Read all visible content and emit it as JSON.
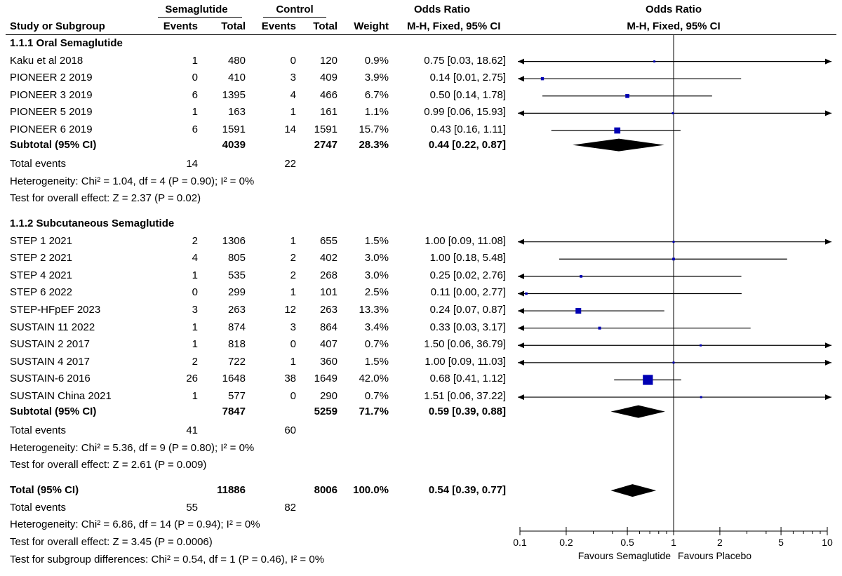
{
  "header": {
    "group1": "Semaglutide",
    "group2": "Control",
    "or_table": "Odds Ratio",
    "or_plot": "Odds Ratio",
    "study": "Study or Subgroup",
    "events1": "Events",
    "total1": "Total",
    "events2": "Events",
    "total2": "Total",
    "weight": "Weight",
    "method_table": "M-H, Fixed, 95% CI",
    "method_plot": "M-H, Fixed, 95% CI"
  },
  "chart_data": {
    "type": "forest",
    "x_scale": "log",
    "xlim": [
      0.1,
      10
    ],
    "x_ticks": [
      "0.1",
      "0.2",
      "0.5",
      "1",
      "2",
      "5",
      "10"
    ],
    "x_tick_values": [
      0.1,
      0.2,
      0.5,
      1,
      2,
      5,
      10
    ],
    "favours_left": "Favours Semaglutide",
    "favours_right": "Favours Placebo",
    "groups": [
      {
        "title": "1.1.1 Oral Semaglutide",
        "studies": [
          {
            "name": "Kaku et al 2018",
            "e1": "1",
            "t1": "480",
            "e2": "0",
            "t2": "120",
            "weight": "0.9%",
            "ci_text": "0.75 [0.03, 18.62]",
            "or": 0.75,
            "lo": 0.03,
            "hi": 18.62
          },
          {
            "name": "PIONEER 2 2019",
            "e1": "0",
            "t1": "410",
            "e2": "3",
            "t2": "409",
            "weight": "3.9%",
            "ci_text": "0.14 [0.01, 2.75]",
            "or": 0.14,
            "lo": 0.01,
            "hi": 2.75
          },
          {
            "name": "PIONEER 3 2019",
            "e1": "6",
            "t1": "1395",
            "e2": "4",
            "t2": "466",
            "weight": "6.7%",
            "ci_text": "0.50 [0.14, 1.78]",
            "or": 0.5,
            "lo": 0.14,
            "hi": 1.78
          },
          {
            "name": "PIONEER 5 2019",
            "e1": "1",
            "t1": "163",
            "e2": "1",
            "t2": "161",
            "weight": "1.1%",
            "ci_text": "0.99 [0.06, 15.93]",
            "or": 0.99,
            "lo": 0.06,
            "hi": 15.93
          },
          {
            "name": "PIONEER 6 2019",
            "e1": "6",
            "t1": "1591",
            "e2": "14",
            "t2": "1591",
            "weight": "15.7%",
            "ci_text": "0.43 [0.16, 1.11]",
            "or": 0.43,
            "lo": 0.16,
            "hi": 1.11
          }
        ],
        "subtotal": {
          "label": "Subtotal (95% CI)",
          "t1": "4039",
          "t2": "2747",
          "weight": "28.3%",
          "ci_text": "0.44 [0.22, 0.87]",
          "or": 0.44,
          "lo": 0.22,
          "hi": 0.87
        },
        "total_events": {
          "label": "Total events",
          "e1": "14",
          "e2": "22"
        },
        "heterogeneity": "Heterogeneity: Chi² = 1.04, df = 4 (P = 0.90); I² = 0%",
        "overall": "Test for overall effect: Z = 2.37 (P = 0.02)"
      },
      {
        "title": "1.1.2 Subcutaneous Semaglutide",
        "studies": [
          {
            "name": "STEP 1 2021",
            "e1": "2",
            "t1": "1306",
            "e2": "1",
            "t2": "655",
            "weight": "1.5%",
            "ci_text": "1.00 [0.09, 11.08]",
            "or": 1.0,
            "lo": 0.09,
            "hi": 11.08
          },
          {
            "name": "STEP 2 2021",
            "e1": "4",
            "t1": "805",
            "e2": "2",
            "t2": "402",
            "weight": "3.0%",
            "ci_text": "1.00 [0.18, 5.48]",
            "or": 1.0,
            "lo": 0.18,
            "hi": 5.48
          },
          {
            "name": "STEP 4 2021",
            "e1": "1",
            "t1": "535",
            "e2": "2",
            "t2": "268",
            "weight": "3.0%",
            "ci_text": "0.25 [0.02, 2.76]",
            "or": 0.25,
            "lo": 0.02,
            "hi": 2.76
          },
          {
            "name": "STEP 6 2022",
            "e1": "0",
            "t1": "299",
            "e2": "1",
            "t2": "101",
            "weight": "2.5%",
            "ci_text": "0.11 [0.00, 2.77]",
            "or": 0.11,
            "lo": 0.001,
            "hi": 2.77
          },
          {
            "name": "STEP-HFpEF 2023",
            "e1": "3",
            "t1": "263",
            "e2": "12",
            "t2": "263",
            "weight": "13.3%",
            "ci_text": "0.24 [0.07, 0.87]",
            "or": 0.24,
            "lo": 0.07,
            "hi": 0.87
          },
          {
            "name": "SUSTAIN 11 2022",
            "e1": "1",
            "t1": "874",
            "e2": "3",
            "t2": "864",
            "weight": "3.4%",
            "ci_text": "0.33 [0.03, 3.17]",
            "or": 0.33,
            "lo": 0.03,
            "hi": 3.17
          },
          {
            "name": "SUSTAIN 2 2017",
            "e1": "1",
            "t1": "818",
            "e2": "0",
            "t2": "407",
            "weight": "0.7%",
            "ci_text": "1.50 [0.06, 36.79]",
            "or": 1.5,
            "lo": 0.06,
            "hi": 36.79
          },
          {
            "name": "SUSTAIN 4 2017",
            "e1": "2",
            "t1": "722",
            "e2": "1",
            "t2": "360",
            "weight": "1.5%",
            "ci_text": "1.00 [0.09, 11.03]",
            "or": 1.0,
            "lo": 0.09,
            "hi": 11.03
          },
          {
            "name": "SUSTAIN-6 2016",
            "e1": "26",
            "t1": "1648",
            "e2": "38",
            "t2": "1649",
            "weight": "42.0%",
            "ci_text": "0.68 [0.41, 1.12]",
            "or": 0.68,
            "lo": 0.41,
            "hi": 1.12
          },
          {
            "name": "SUSTAIN China 2021",
            "e1": "1",
            "t1": "577",
            "e2": "0",
            "t2": "290",
            "weight": "0.7%",
            "ci_text": "1.51 [0.06, 37.22]",
            "or": 1.51,
            "lo": 0.06,
            "hi": 37.22
          }
        ],
        "subtotal": {
          "label": "Subtotal (95% CI)",
          "t1": "7847",
          "t2": "5259",
          "weight": "71.7%",
          "ci_text": "0.59 [0.39, 0.88]",
          "or": 0.59,
          "lo": 0.39,
          "hi": 0.88
        },
        "total_events": {
          "label": "Total events",
          "e1": "41",
          "e2": "60"
        },
        "heterogeneity": "Heterogeneity: Chi² = 5.36, df = 9 (P = 0.80); I² = 0%",
        "overall": "Test for overall effect: Z = 2.61 (P = 0.009)"
      }
    ],
    "total": {
      "label": "Total (95% CI)",
      "t1": "11886",
      "t2": "8006",
      "weight": "100.0%",
      "ci_text": "0.54 [0.39, 0.77]",
      "or": 0.54,
      "lo": 0.39,
      "hi": 0.77,
      "total_events": {
        "label": "Total events",
        "e1": "55",
        "e2": "82"
      },
      "heterogeneity": "Heterogeneity: Chi² = 6.86, df = 14 (P = 0.94); I² = 0%",
      "overall": "Test for overall effect: Z = 3.45 (P = 0.0006)",
      "subgroup": "Test for subgroup differences: Chi² = 0.54, df = 1 (P = 0.46), I² = 0%"
    }
  }
}
